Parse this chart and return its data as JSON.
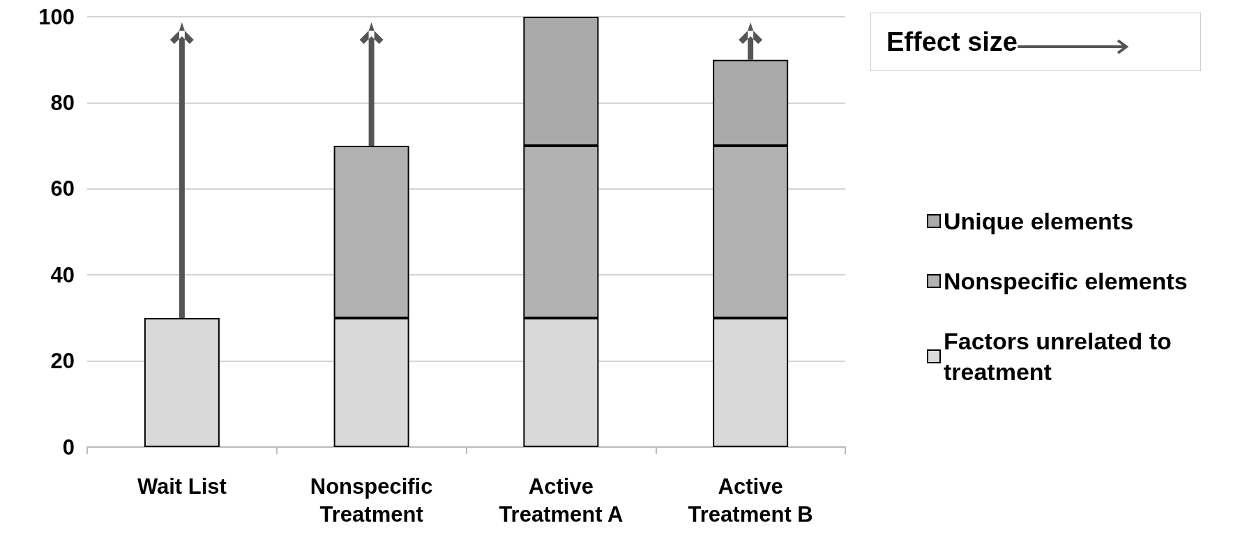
{
  "chart_data": {
    "type": "bar",
    "stacked": true,
    "categories": [
      "Wait List",
      "Nonspecific\nTreatment",
      "Active\nTreatment A",
      "Active\nTreatment B"
    ],
    "series": [
      {
        "name": "Factors unrelated to treatment",
        "color": "#d9d9d9",
        "values": [
          30,
          30,
          30,
          30
        ]
      },
      {
        "name": "Nonspecific elements",
        "color": "#b2b2b2",
        "values": [
          null,
          40,
          40,
          40
        ]
      },
      {
        "name": "Unique elements",
        "color": "#aaaaaa",
        "values": [
          null,
          null,
          30,
          20
        ]
      }
    ],
    "ylim": [
      0,
      100
    ],
    "yticks": [
      0,
      20,
      40,
      60,
      80,
      100
    ],
    "grid": "y",
    "legend": "right",
    "annotations": [
      "Effect size"
    ]
  }
}
